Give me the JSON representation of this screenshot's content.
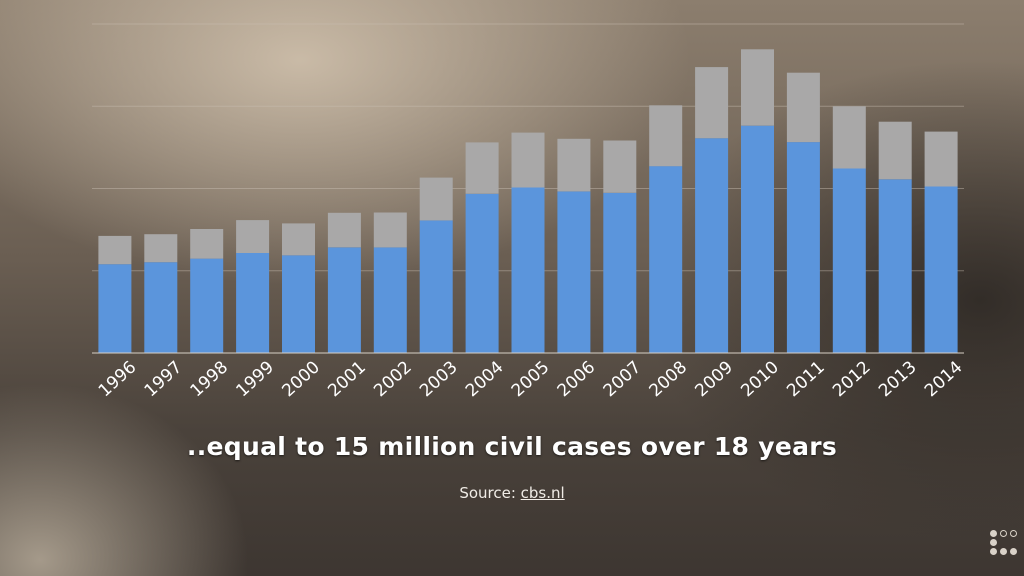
{
  "chart_data": {
    "type": "bar",
    "stacked": true,
    "categories": [
      "1996",
      "1997",
      "1998",
      "1999",
      "2000",
      "2001",
      "2002",
      "2003",
      "2004",
      "2005",
      "2006",
      "2007",
      "2008",
      "2009",
      "2010",
      "2011",
      "2012",
      "2013",
      "2014"
    ],
    "series": [
      {
        "color": "#5b95dc",
        "values": [
          0.54,
          0.552,
          0.574,
          0.608,
          0.594,
          0.642,
          0.642,
          0.806,
          0.968,
          1.006,
          0.982,
          0.974,
          1.136,
          1.306,
          1.382,
          1.282,
          1.122,
          1.056,
          1.012
        ]
      },
      {
        "color": "#a9a8a8",
        "values": [
          0.172,
          0.17,
          0.18,
          0.2,
          0.194,
          0.21,
          0.212,
          0.26,
          0.312,
          0.334,
          0.32,
          0.318,
          0.37,
          0.432,
          0.464,
          0.422,
          0.378,
          0.35,
          0.334
        ]
      }
    ],
    "ylim": [
      0,
      2.0
    ],
    "grid": true,
    "xlabel": "",
    "ylabel": ""
  },
  "caption": "..equal to 15 million civil cases over 18 years",
  "source": {
    "label": "Source: ",
    "link_text": "cbs.nl"
  },
  "colors": {
    "gridline": "#c9bfb3",
    "axis": "#d8d0c6",
    "tick_label": "#ffffff"
  },
  "icons": {
    "corner_logo": "dots-logo-icon"
  }
}
